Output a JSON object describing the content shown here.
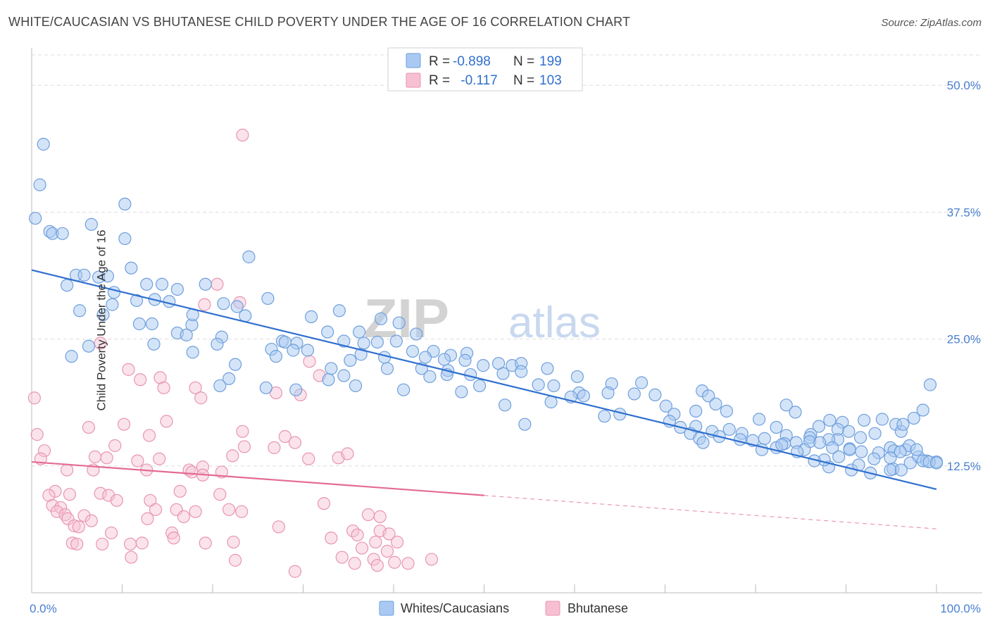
{
  "title": "WHITE/CAUCASIAN VS BHUTANESE CHILD POVERTY UNDER THE AGE OF 16 CORRELATION CHART",
  "source": "Source: ZipAtlas.com",
  "watermark": {
    "zip": "ZIP",
    "atlas": "atlas"
  },
  "colors": {
    "blue_fill": "#a9c9f2",
    "blue_stroke": "#6f9fdc",
    "blue_line": "#2f6fcf",
    "pink_fill": "#f6c0d2",
    "pink_stroke": "#e895b2",
    "pink_line": "#e36b96",
    "tick_label": "#4a7fd0",
    "grid": "#dddddd"
  },
  "legend_top": [
    {
      "swatch": "blue",
      "r_label": "R = ",
      "r_value": "-0.898",
      "n_label": "N = ",
      "n_value": "199"
    },
    {
      "swatch": "pink",
      "r_label": "R = ",
      "r_value": " -0.117",
      "n_label": "N = ",
      "n_value": "103"
    }
  ],
  "chart_data": {
    "type": "scatter",
    "title": "WHITE/CAUCASIAN VS BHUTANESE CHILD POVERTY UNDER THE AGE OF 16 CORRELATION CHART",
    "xlabel": "",
    "ylabel": "Child Poverty Under the Age of 16",
    "xlim": [
      0,
      100
    ],
    "ylim": [
      0,
      53
    ],
    "x_tick_labels": [
      "0.0%",
      "100.0%"
    ],
    "y_ticks": [
      12.5,
      25.0,
      37.5,
      50.0
    ],
    "y_tick_labels": [
      "12.5%",
      "25.0%",
      "37.5%",
      "50.0%"
    ],
    "grid": true,
    "legend_bottom": [
      "Whites/Caucasians",
      "Bhutanese"
    ],
    "series": [
      {
        "name": "Whites/Caucasians",
        "r": -0.898,
        "n": 199,
        "trend": {
          "x": [
            0,
            100
          ],
          "y": [
            31.8,
            10.2
          ],
          "dashed_from": null
        },
        "points": [
          [
            1.3,
            44.2
          ],
          [
            0.9,
            40.2
          ],
          [
            0.4,
            36.9
          ],
          [
            2.0,
            35.6
          ],
          [
            2.3,
            35.4
          ],
          [
            3.4,
            35.4
          ],
          [
            6.6,
            36.3
          ],
          [
            10.3,
            38.3
          ],
          [
            10.3,
            34.9
          ],
          [
            24.0,
            33.1
          ],
          [
            11.0,
            32.0
          ],
          [
            4.9,
            31.3
          ],
          [
            5.8,
            31.3
          ],
          [
            7.4,
            31.1
          ],
          [
            8.4,
            31.2
          ],
          [
            3.9,
            30.3
          ],
          [
            12.7,
            30.4
          ],
          [
            14.4,
            30.4
          ],
          [
            16.1,
            29.9
          ],
          [
            19.2,
            30.4
          ],
          [
            9.1,
            29.6
          ],
          [
            11.6,
            28.8
          ],
          [
            13.6,
            28.9
          ],
          [
            15.2,
            28.7
          ],
          [
            21.2,
            28.5
          ],
          [
            26.1,
            29.0
          ],
          [
            5.3,
            27.8
          ],
          [
            7.9,
            27.4
          ],
          [
            8.9,
            28.4
          ],
          [
            22.7,
            28.2
          ],
          [
            23.6,
            27.3
          ],
          [
            34.0,
            27.8
          ],
          [
            30.9,
            27.2
          ],
          [
            38.6,
            27.0
          ],
          [
            11.9,
            26.5
          ],
          [
            13.3,
            26.5
          ],
          [
            17.7,
            26.4
          ],
          [
            17.8,
            27.4
          ],
          [
            40.6,
            26.6
          ],
          [
            16.1,
            25.6
          ],
          [
            32.7,
            25.7
          ],
          [
            36.2,
            25.7
          ],
          [
            42.5,
            25.5
          ],
          [
            17.1,
            25.4
          ],
          [
            21.0,
            25.2
          ],
          [
            27.7,
            24.8
          ],
          [
            36.7,
            24.6
          ],
          [
            13.5,
            24.5
          ],
          [
            20.5,
            24.5
          ],
          [
            28.0,
            24.7
          ],
          [
            29.3,
            24.6
          ],
          [
            34.5,
            24.8
          ],
          [
            38.2,
            24.7
          ],
          [
            40.3,
            24.8
          ],
          [
            6.3,
            24.3
          ],
          [
            26.5,
            24.0
          ],
          [
            17.8,
            23.7
          ],
          [
            28.9,
            23.9
          ],
          [
            30.5,
            23.9
          ],
          [
            36.4,
            23.5
          ],
          [
            42.1,
            23.8
          ],
          [
            44.4,
            23.8
          ],
          [
            46.3,
            23.4
          ],
          [
            48.1,
            23.6
          ],
          [
            4.4,
            23.3
          ],
          [
            27.0,
            23.3
          ],
          [
            39.0,
            23.2
          ],
          [
            43.5,
            23.2
          ],
          [
            45.6,
            23.0
          ],
          [
            47.9,
            22.9
          ],
          [
            22.5,
            22.5
          ],
          [
            35.2,
            22.9
          ],
          [
            39.3,
            22.1
          ],
          [
            46.0,
            21.9
          ],
          [
            49.9,
            22.4
          ],
          [
            51.6,
            22.6
          ],
          [
            53.1,
            22.4
          ],
          [
            54.1,
            22.6
          ],
          [
            33.1,
            22.1
          ],
          [
            43.1,
            22.1
          ],
          [
            57.0,
            22.1
          ],
          [
            45.9,
            21.5
          ],
          [
            48.5,
            21.5
          ],
          [
            60.3,
            21.3
          ],
          [
            21.8,
            21.1
          ],
          [
            32.8,
            21.0
          ],
          [
            34.5,
            21.4
          ],
          [
            44.0,
            21.3
          ],
          [
            52.1,
            21.6
          ],
          [
            54.1,
            21.8
          ],
          [
            20.8,
            20.4
          ],
          [
            25.9,
            20.2
          ],
          [
            35.8,
            20.4
          ],
          [
            41.1,
            20.0
          ],
          [
            49.5,
            20.4
          ],
          [
            56.0,
            20.5
          ],
          [
            57.7,
            20.4
          ],
          [
            64.1,
            20.6
          ],
          [
            67.4,
            20.7
          ],
          [
            29.2,
            20.0
          ],
          [
            47.5,
            19.8
          ],
          [
            60.5,
            19.7
          ],
          [
            63.7,
            19.7
          ],
          [
            66.6,
            19.6
          ],
          [
            74.1,
            19.9
          ],
          [
            59.6,
            19.3
          ],
          [
            61.0,
            19.4
          ],
          [
            68.9,
            19.5
          ],
          [
            74.8,
            19.4
          ],
          [
            52.3,
            18.5
          ],
          [
            57.4,
            18.8
          ],
          [
            70.1,
            18.4
          ],
          [
            75.6,
            18.6
          ],
          [
            83.4,
            18.5
          ],
          [
            65.0,
            17.6
          ],
          [
            71.0,
            17.6
          ],
          [
            73.4,
            17.9
          ],
          [
            76.8,
            17.9
          ],
          [
            84.4,
            17.8
          ],
          [
            54.5,
            16.6
          ],
          [
            70.5,
            16.9
          ],
          [
            80.4,
            17.1
          ],
          [
            88.2,
            17.0
          ],
          [
            89.6,
            16.8
          ],
          [
            92.0,
            17.0
          ],
          [
            94.0,
            17.1
          ],
          [
            95.5,
            16.6
          ],
          [
            82.3,
            16.3
          ],
          [
            71.7,
            16.3
          ],
          [
            73.4,
            16.4
          ],
          [
            87.0,
            16.4
          ],
          [
            89.1,
            16.1
          ],
          [
            90.3,
            15.9
          ],
          [
            93.2,
            15.7
          ],
          [
            96.1,
            15.9
          ],
          [
            86.1,
            15.6
          ],
          [
            89.1,
            15.1
          ],
          [
            91.6,
            15.3
          ],
          [
            96.3,
            16.6
          ],
          [
            97.5,
            17.2
          ],
          [
            98.5,
            18.0
          ],
          [
            99.3,
            20.5
          ],
          [
            63.3,
            17.4
          ],
          [
            72.8,
            15.7
          ],
          [
            75.2,
            15.9
          ],
          [
            77.1,
            16.1
          ],
          [
            78.5,
            15.7
          ],
          [
            81.0,
            15.2
          ],
          [
            83.4,
            15.5
          ],
          [
            86.0,
            15.3
          ],
          [
            88.1,
            15.1
          ],
          [
            76.0,
            15.4
          ],
          [
            78.3,
            15.1
          ],
          [
            73.8,
            15.2
          ],
          [
            74.2,
            14.8
          ],
          [
            79.7,
            15.0
          ],
          [
            83.2,
            14.7
          ],
          [
            84.5,
            14.8
          ],
          [
            86.0,
            14.9
          ],
          [
            87.1,
            14.8
          ],
          [
            80.7,
            14.1
          ],
          [
            82.3,
            14.3
          ],
          [
            85.4,
            14.1
          ],
          [
            88.5,
            14.3
          ],
          [
            90.4,
            14.2
          ],
          [
            94.9,
            14.3
          ],
          [
            95.3,
            14.0
          ],
          [
            96.6,
            14.1
          ],
          [
            97.0,
            14.5
          ],
          [
            82.9,
            14.6
          ],
          [
            84.6,
            13.9
          ],
          [
            90.4,
            14.1
          ],
          [
            91.7,
            13.9
          ],
          [
            93.6,
            13.8
          ],
          [
            96.0,
            13.9
          ],
          [
            98.0,
            13.4
          ],
          [
            100.0,
            12.9
          ],
          [
            97.8,
            14.1
          ],
          [
            98.9,
            13.0
          ],
          [
            89.2,
            13.4
          ],
          [
            93.1,
            13.2
          ],
          [
            94.9,
            13.3
          ],
          [
            98.5,
            13.0
          ],
          [
            99.2,
            12.9
          ],
          [
            100.0,
            12.8
          ],
          [
            97.1,
            12.8
          ],
          [
            95.2,
            12.2
          ],
          [
            88.1,
            12.4
          ],
          [
            90.6,
            12.1
          ],
          [
            94.9,
            12.1
          ],
          [
            96.1,
            12.1
          ],
          [
            92.7,
            11.8
          ],
          [
            91.4,
            12.6
          ],
          [
            87.6,
            13.1
          ],
          [
            86.5,
            13.0
          ]
        ]
      },
      {
        "name": "Bhutanese",
        "r": -0.117,
        "n": 103,
        "trend": {
          "x": [
            0,
            100
          ],
          "y": [
            12.9,
            6.3
          ],
          "dashed_from": 50
        },
        "points": [
          [
            23.3,
            45.1
          ],
          [
            20.5,
            30.4
          ],
          [
            23.0,
            28.6
          ],
          [
            19.1,
            28.4
          ],
          [
            7.6,
            24.6
          ],
          [
            30.7,
            22.8
          ],
          [
            10.7,
            22.0
          ],
          [
            12.0,
            21.0
          ],
          [
            14.2,
            21.2
          ],
          [
            31.8,
            21.4
          ],
          [
            14.6,
            20.2
          ],
          [
            18.1,
            20.2
          ],
          [
            27.0,
            19.7
          ],
          [
            29.7,
            19.5
          ],
          [
            18.7,
            19.2
          ],
          [
            0.3,
            19.2
          ],
          [
            14.9,
            16.9
          ],
          [
            10.2,
            16.6
          ],
          [
            6.3,
            16.3
          ],
          [
            23.3,
            15.9
          ],
          [
            0.6,
            15.6
          ],
          [
            28.0,
            15.4
          ],
          [
            13.0,
            15.5
          ],
          [
            29.1,
            14.8
          ],
          [
            9.2,
            14.5
          ],
          [
            23.5,
            14.4
          ],
          [
            26.8,
            14.3
          ],
          [
            1.4,
            14.0
          ],
          [
            7.0,
            13.4
          ],
          [
            22.2,
            13.5
          ],
          [
            30.6,
            13.2
          ],
          [
            33.9,
            13.3
          ],
          [
            34.9,
            13.7
          ],
          [
            1.0,
            13.2
          ],
          [
            8.3,
            13.3
          ],
          [
            11.7,
            13.0
          ],
          [
            14.1,
            13.2
          ],
          [
            3.9,
            12.1
          ],
          [
            6.8,
            12.1
          ],
          [
            12.7,
            12.1
          ],
          [
            17.4,
            12.1
          ],
          [
            18.9,
            12.4
          ],
          [
            21.0,
            11.9
          ],
          [
            18.9,
            11.6
          ],
          [
            17.7,
            11.9
          ],
          [
            2.6,
            10.0
          ],
          [
            4.2,
            9.7
          ],
          [
            7.6,
            9.8
          ],
          [
            8.5,
            9.6
          ],
          [
            1.9,
            9.6
          ],
          [
            16.4,
            10.0
          ],
          [
            20.8,
            9.7
          ],
          [
            9.4,
            9.1
          ],
          [
            13.1,
            9.1
          ],
          [
            32.3,
            8.8
          ],
          [
            2.3,
            8.6
          ],
          [
            3.2,
            8.4
          ],
          [
            13.7,
            8.2
          ],
          [
            16.0,
            8.2
          ],
          [
            18.1,
            8.0
          ],
          [
            21.8,
            8.2
          ],
          [
            23.2,
            8.0
          ],
          [
            2.8,
            8.0
          ],
          [
            3.7,
            7.7
          ],
          [
            4.0,
            7.3
          ],
          [
            5.8,
            7.6
          ],
          [
            12.8,
            7.3
          ],
          [
            16.8,
            7.5
          ],
          [
            37.2,
            7.7
          ],
          [
            38.5,
            7.5
          ],
          [
            6.6,
            7.1
          ],
          [
            4.7,
            6.6
          ],
          [
            5.2,
            6.5
          ],
          [
            27.3,
            6.5
          ],
          [
            35.5,
            6.1
          ],
          [
            38.5,
            6.1
          ],
          [
            39.5,
            5.8
          ],
          [
            8.8,
            5.9
          ],
          [
            15.5,
            5.9
          ],
          [
            15.7,
            5.4
          ],
          [
            33.1,
            5.4
          ],
          [
            36.0,
            5.7
          ],
          [
            4.5,
            4.9
          ],
          [
            7.8,
            4.8
          ],
          [
            10.9,
            4.8
          ],
          [
            12.2,
            4.9
          ],
          [
            19.2,
            4.9
          ],
          [
            22.3,
            5.0
          ],
          [
            38.0,
            5.0
          ],
          [
            40.4,
            5.0
          ],
          [
            5.0,
            4.8
          ],
          [
            36.5,
            4.4
          ],
          [
            39.3,
            4.1
          ],
          [
            11.0,
            3.5
          ],
          [
            34.3,
            3.5
          ],
          [
            37.8,
            3.3
          ],
          [
            40.1,
            3.0
          ],
          [
            44.2,
            3.3
          ],
          [
            22.5,
            3.2
          ],
          [
            35.7,
            2.9
          ],
          [
            38.2,
            2.7
          ],
          [
            41.6,
            2.9
          ],
          [
            29.1,
            2.1
          ]
        ]
      }
    ]
  }
}
